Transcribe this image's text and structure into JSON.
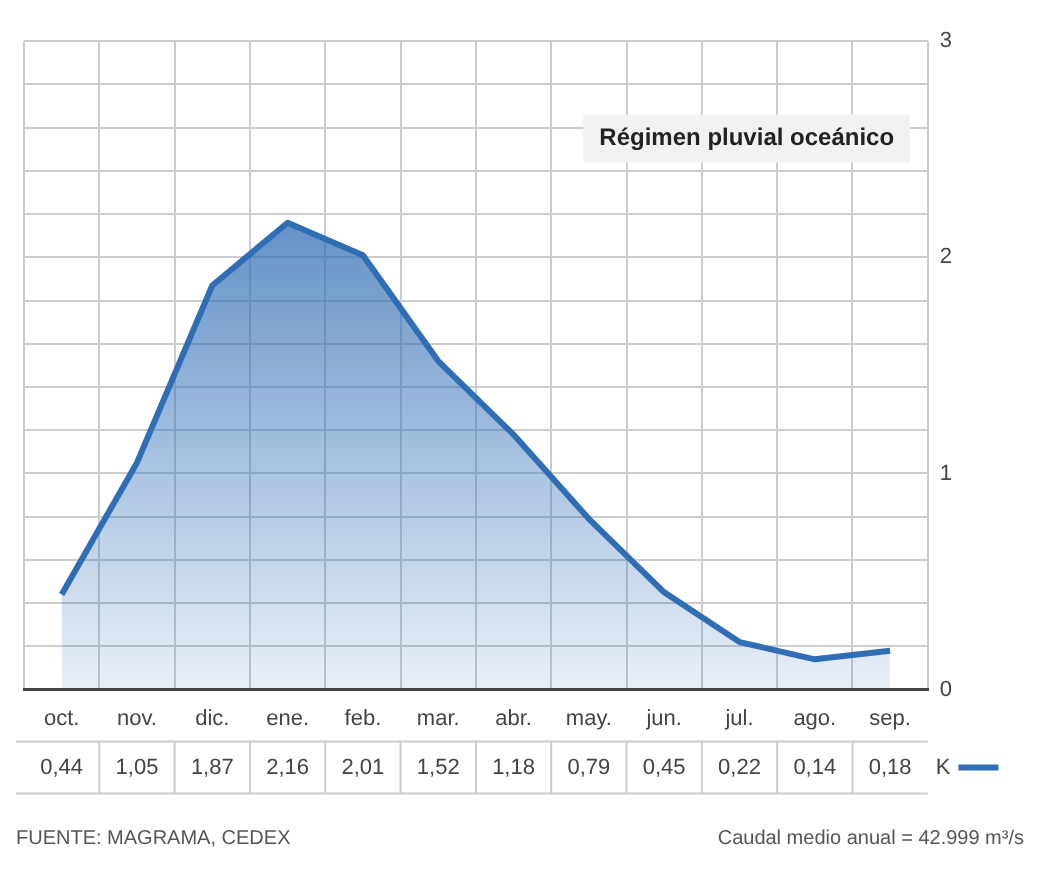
{
  "chart_data": {
    "type": "area",
    "title": "Régimen pluvial oceánico",
    "categories": [
      "oct.",
      "nov.",
      "dic.",
      "ene.",
      "feb.",
      "mar.",
      "abr.",
      "may.",
      "jun.",
      "jul.",
      "ago.",
      "sep."
    ],
    "series": [
      {
        "name": "K",
        "color": "#2f6db5",
        "values": [
          0.44,
          1.05,
          1.87,
          2.16,
          2.01,
          1.52,
          1.18,
          0.79,
          0.45,
          0.22,
          0.14,
          0.18
        ],
        "value_labels": [
          "0,44",
          "1,05",
          "1,87",
          "2,16",
          "2,01",
          "1,52",
          "1,18",
          "0,79",
          "0,45",
          "0,22",
          "0,14",
          "0,18"
        ]
      }
    ],
    "ylim": [
      0,
      3
    ],
    "yticks": [
      0,
      {
        "value": 0.2,
        "label": null
      },
      {
        "value": 0.4,
        "label": null
      },
      {
        "value": 0.6,
        "label": null
      },
      {
        "value": 0.8,
        "label": null
      },
      1,
      {
        "value": 1.2,
        "label": null
      },
      {
        "value": 1.4,
        "label": null
      },
      {
        "value": 1.6,
        "label": null
      },
      {
        "value": 1.8,
        "label": null
      },
      2,
      {
        "value": 2.2,
        "label": null
      },
      {
        "value": 2.4,
        "label": null
      },
      {
        "value": 2.6,
        "label": null
      },
      {
        "value": 2.8,
        "label": null
      },
      3
    ],
    "grid": true,
    "legend": "bottom right",
    "annotations": [
      "FUENTE: MAGRAMA, CEDEX",
      "Caudal medio anual = 42.999 m³/s"
    ]
  }
}
